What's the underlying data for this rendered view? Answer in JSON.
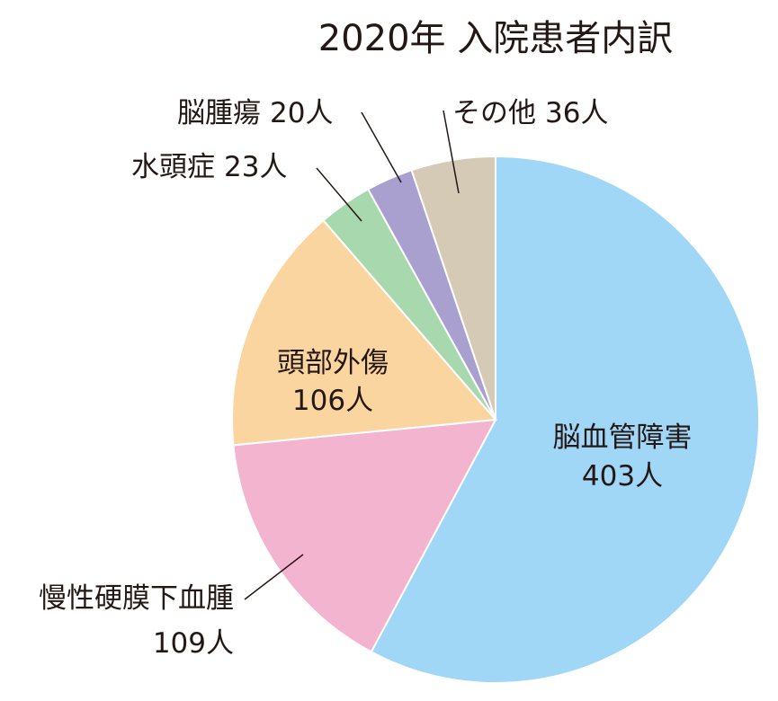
{
  "chart_data": {
    "type": "pie",
    "title": "2020年 入院患者内訳",
    "unit": "人",
    "slices": [
      {
        "name": "脳血管障害",
        "value": 403,
        "value_label": "403人",
        "color": "#a0d6f6"
      },
      {
        "name": "慢性硬膜下血腫",
        "value": 109,
        "value_label": "109人",
        "color": "#f3b4d0"
      },
      {
        "name": "頭部外傷",
        "value": 106,
        "value_label": "106人",
        "color": "#fbd5a0"
      },
      {
        "name": "水頭症",
        "value": 23,
        "value_label": "23人",
        "color": "#a8d8ae"
      },
      {
        "name": "脳腫瘍",
        "value": 20,
        "value_label": "20人",
        "color": "#a9a0d0"
      },
      {
        "name": "その他",
        "value": 36,
        "value_label": "36人",
        "color": "#d4cab6"
      }
    ]
  }
}
